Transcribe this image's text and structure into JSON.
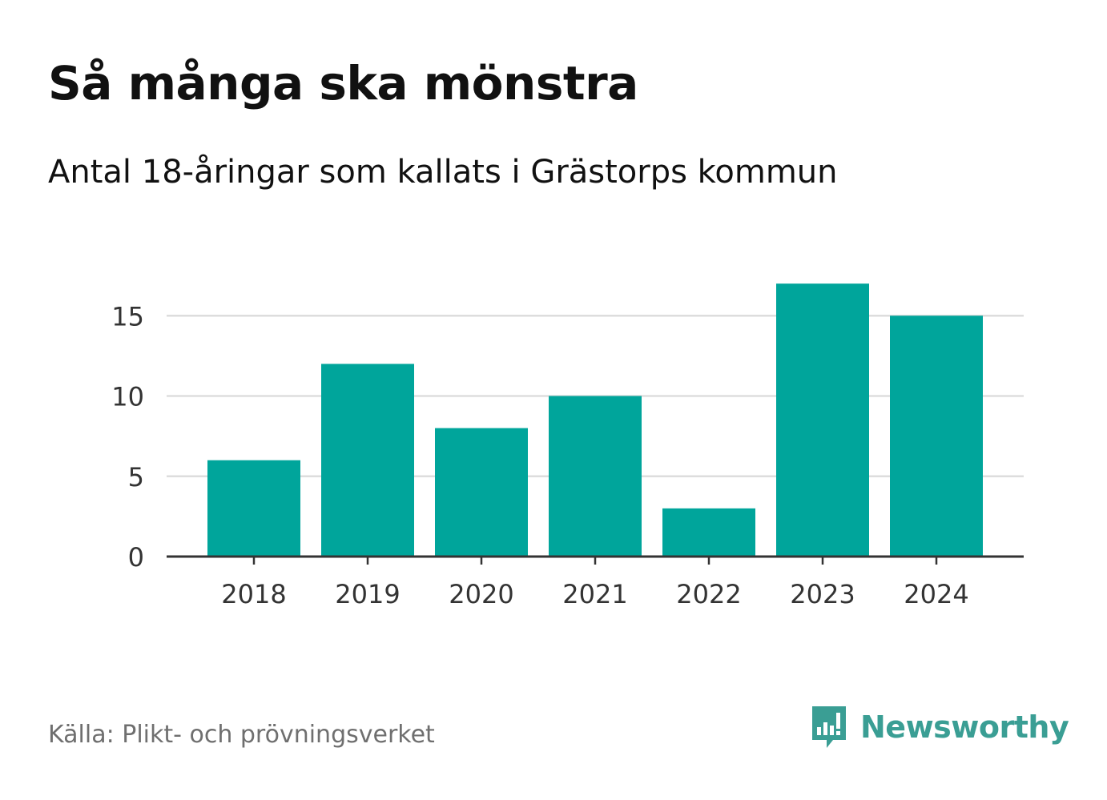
{
  "title": "Så många ska mönstra",
  "subtitle": "Antal 18-åringar som kallats i Grästorps kommun",
  "source": "Källa: Plikt- och prövningsverket",
  "brand": "Newsworthy",
  "colors": {
    "bar": "#00a59b",
    "grid": "#dddddd",
    "axis": "#333333",
    "brand": "#3a9e94"
  },
  "chart_data": {
    "type": "bar",
    "categories": [
      "2018",
      "2019",
      "2020",
      "2021",
      "2022",
      "2023",
      "2024"
    ],
    "values": [
      6,
      12,
      8,
      10,
      3,
      17,
      15
    ],
    "yticks": [
      "0",
      "5",
      "10",
      "15"
    ],
    "ytick_values": [
      0,
      5,
      10,
      15
    ],
    "ylim": [
      0,
      17
    ],
    "title": "Så många ska mönstra",
    "xlabel": "",
    "ylabel": "",
    "grid": true
  }
}
